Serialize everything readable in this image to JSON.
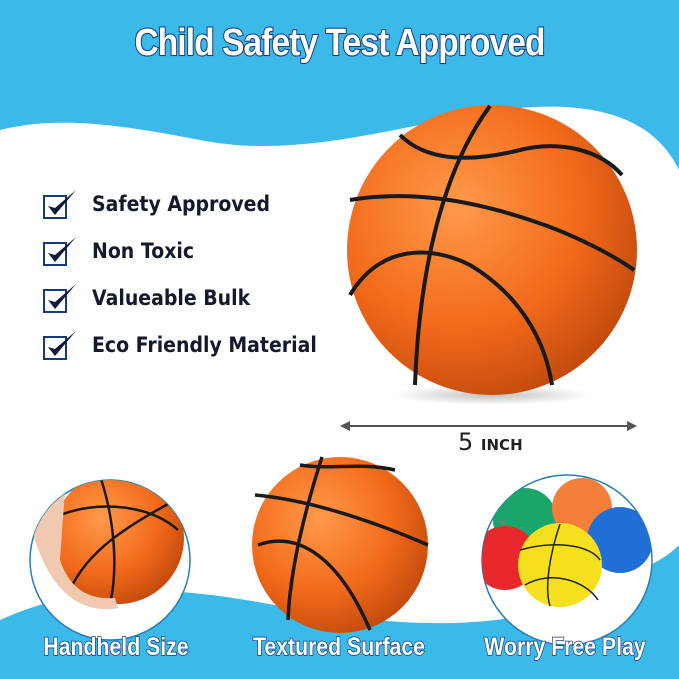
{
  "title": "Child Safety Test Approved",
  "features": [
    {
      "label": "Safety Approved",
      "icon": "checkbox-checked-icon"
    },
    {
      "label": "Non Toxic",
      "icon": "checkbox-checked-icon"
    },
    {
      "label": "Valueable Bulk",
      "icon": "checkbox-checked-icon"
    },
    {
      "label": "Eco Friendly Material",
      "icon": "checkbox-checked-icon"
    }
  ],
  "size": {
    "value": "5",
    "unit": "INCH"
  },
  "highlights": [
    {
      "label": "Handheld Size"
    },
    {
      "label": "Textured Surface"
    },
    {
      "label": "Worry Free Play"
    }
  ],
  "colors": {
    "sky": "#3bb9e9",
    "ball": "#f26a1b",
    "navy": "#163a7a",
    "ball_colors": [
      "#1aa56a",
      "#f47f3a",
      "#e8282b",
      "#1f6fd6",
      "#f5df1e"
    ]
  }
}
